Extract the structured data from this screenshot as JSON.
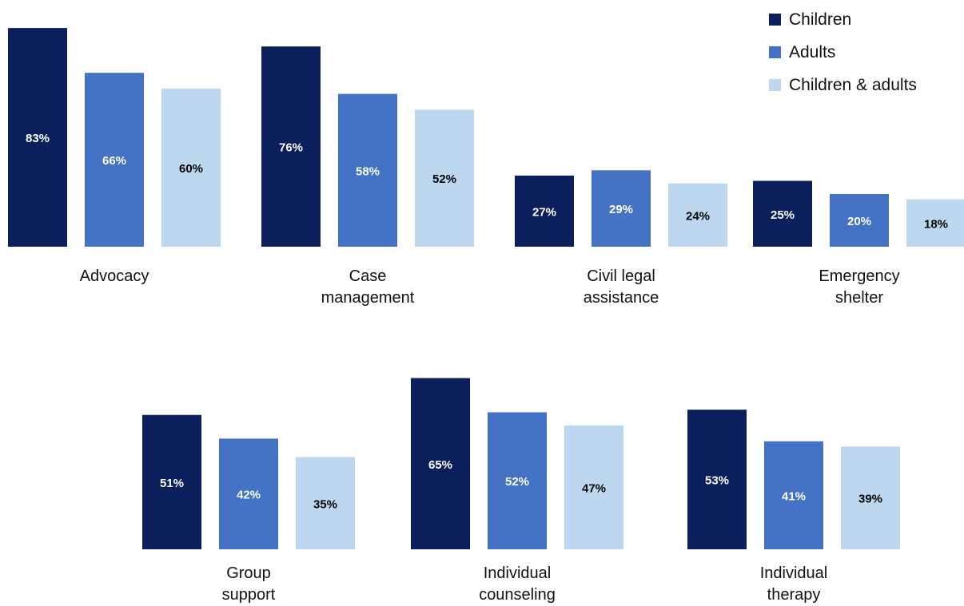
{
  "chart_data": {
    "type": "bar",
    "legend_position": "top-right",
    "series": [
      {
        "name": "Children",
        "color": "#0a1f5c"
      },
      {
        "name": "Adults",
        "color": "#4472c4"
      },
      {
        "name": "Children & adults",
        "color": "#bdd7ee"
      }
    ],
    "label_colors": {
      "Children": "#ffffff",
      "Adults": "#ffffff",
      "Children & adults": "#000000"
    },
    "groups": [
      {
        "category": "Advocacy",
        "label_lines": [
          "Advocacy"
        ],
        "values": [
          83,
          66,
          60
        ],
        "value_labels": [
          "83%",
          "66%",
          "60%"
        ]
      },
      {
        "category": "Case management",
        "label_lines": [
          "Case",
          "management"
        ],
        "values": [
          76,
          58,
          52
        ],
        "value_labels": [
          "76%",
          "58%",
          "52%"
        ]
      },
      {
        "category": "Civil legal assistance",
        "label_lines": [
          "Civil legal",
          "assistance"
        ],
        "values": [
          27,
          29,
          24
        ],
        "value_labels": [
          "27%",
          "29%",
          "24%"
        ]
      },
      {
        "category": "Emergency shelter",
        "label_lines": [
          "Emergency",
          "shelter"
        ],
        "values": [
          25,
          20,
          18
        ],
        "value_labels": [
          "25%",
          "20%",
          "18%"
        ]
      },
      {
        "category": "Group support",
        "label_lines": [
          "Group",
          "support"
        ],
        "values": [
          51,
          42,
          35
        ],
        "value_labels": [
          "51%",
          "42%",
          "35%"
        ]
      },
      {
        "category": "Individual counseling",
        "label_lines": [
          "Individual",
          "counseling"
        ],
        "values": [
          65,
          52,
          47
        ],
        "value_labels": [
          "65%",
          "52%",
          "47%"
        ]
      },
      {
        "category": "Individual therapy",
        "label_lines": [
          "Individual",
          "therapy"
        ],
        "values": [
          53,
          41,
          39
        ],
        "value_labels": [
          "53%",
          "41%",
          "39%"
        ]
      }
    ]
  }
}
